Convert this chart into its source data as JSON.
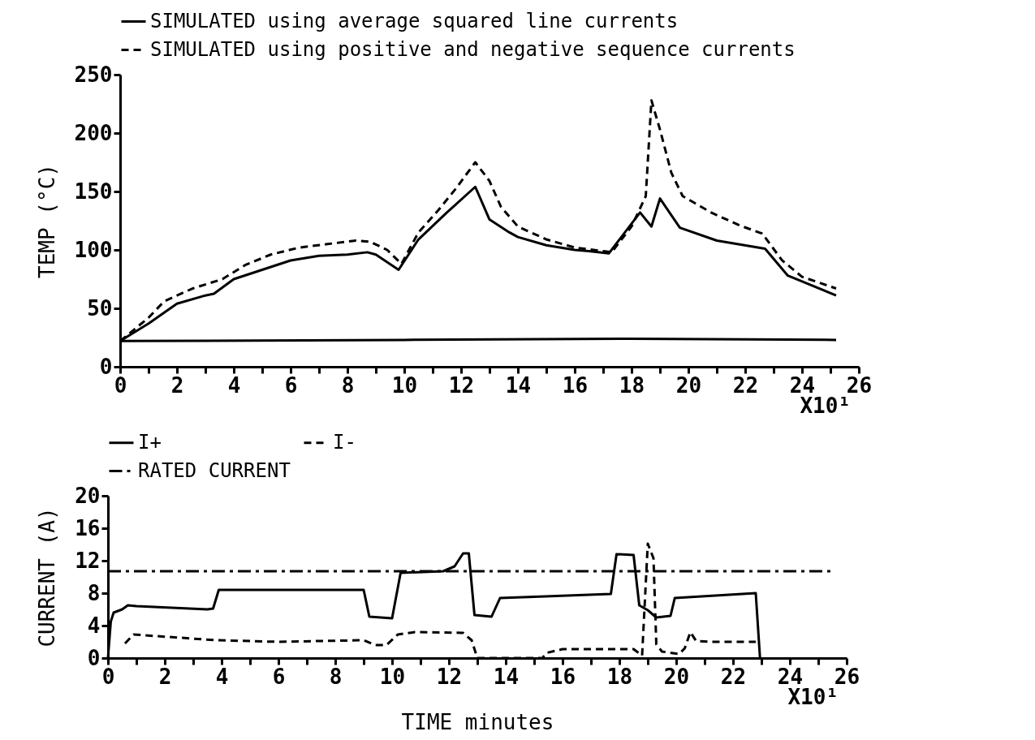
{
  "chart_data": [
    {
      "type": "line",
      "ylabel": "TEMP (°C)",
      "xlim": [
        0,
        26
      ],
      "ylim": [
        0,
        250
      ],
      "xticks": [
        0,
        {
          "value": 1,
          "label": null
        },
        2,
        {
          "value": 3,
          "label": null
        },
        4,
        {
          "value": 5,
          "label": null
        },
        6,
        {
          "value": 7,
          "label": null
        },
        8,
        {
          "value": 9,
          "label": null
        },
        10,
        {
          "value": 11,
          "label": null
        },
        12,
        {
          "value": 13,
          "label": null
        },
        14,
        {
          "value": 15,
          "label": null
        },
        16,
        {
          "value": 17,
          "label": null
        },
        18,
        {
          "value": 19,
          "label": null
        },
        20,
        {
          "value": 21,
          "label": null
        },
        22,
        {
          "value": 23,
          "label": null
        },
        24,
        {
          "value": 25,
          "label": null
        },
        26
      ],
      "yticks": [
        0,
        50,
        100,
        150,
        200,
        250
      ],
      "legend": "top",
      "annotations": [
        "X10¹"
      ],
      "series": [
        {
          "name": "SIMULATED using average squared line currents",
          "color": "#000000",
          "line_style": "solid",
          "x": [
            0,
            1,
            2,
            3,
            3.3,
            4,
            5,
            6,
            7,
            8,
            8.7,
            9,
            9.8,
            10.5,
            11.5,
            12.5,
            13,
            13.7,
            14,
            15,
            16,
            16.5,
            17.2,
            18.3,
            18.7,
            19,
            19.7,
            21,
            22.7,
            23.5,
            25.2
          ],
          "values": [
            22,
            37,
            54,
            61,
            62.5,
            75,
            83,
            91,
            95,
            96,
            98,
            96,
            83,
            109,
            132,
            154,
            126,
            115,
            111,
            104,
            100,
            99,
            97,
            132,
            120,
            144,
            119,
            108,
            101,
            78,
            61
          ]
        },
        {
          "name": "SIMULATED using positive and negative sequence currents",
          "color": "#000000",
          "line_style": "dashed",
          "x": [
            0,
            1,
            1.55,
            2.55,
            3.6,
            4.4,
            5.3,
            6.3,
            7.3,
            8.3,
            8.8,
            9.4,
            9.9,
            10.5,
            11.2,
            11.8,
            12.5,
            13,
            13.4,
            14,
            15,
            16,
            17,
            17.3,
            18,
            18.5,
            18.7,
            19,
            19.4,
            19.8,
            20.8,
            21.8,
            22.6,
            23.3,
            24,
            25.2
          ],
          "values": [
            22,
            42,
            56,
            67,
            75,
            87,
            96,
            102,
            105,
            108,
            107,
            100,
            88,
            115,
            134,
            152,
            175,
            159,
            137,
            120,
            109,
            102,
            99,
            98,
            120,
            146,
            228,
            203,
            166,
            146,
            132,
            121,
            114,
            91,
            77,
            67
          ]
        },
        {
          "color": "#000000",
          "line_style": "solid",
          "x": [
            0,
            10,
            18,
            25.2
          ],
          "values": [
            22,
            23,
            24,
            23
          ]
        }
      ]
    },
    {
      "type": "line",
      "xlabel": "TIME minutes",
      "ylabel": "CURRENT (A)",
      "xlim": [
        0,
        26
      ],
      "ylim": [
        0,
        20
      ],
      "xticks": [
        0,
        {
          "value": 1,
          "label": null
        },
        2,
        {
          "value": 3,
          "label": null
        },
        4,
        {
          "value": 5,
          "label": null
        },
        6,
        {
          "value": 7,
          "label": null
        },
        8,
        {
          "value": 9,
          "label": null
        },
        10,
        {
          "value": 11,
          "label": null
        },
        12,
        {
          "value": 13,
          "label": null
        },
        14,
        {
          "value": 15,
          "label": null
        },
        16,
        {
          "value": 17,
          "label": null
        },
        18,
        {
          "value": 19,
          "label": null
        },
        20,
        {
          "value": 21,
          "label": null
        },
        22,
        {
          "value": 23,
          "label": null
        },
        24,
        {
          "value": 25,
          "label": null
        },
        26
      ],
      "yticks": [
        0,
        4,
        8,
        12,
        16,
        20
      ],
      "legend": "top",
      "annotations": [
        "X10¹"
      ],
      "series": [
        {
          "name": "I+",
          "color": "#000000",
          "line_style": "solid",
          "x": [
            0,
            0.1,
            0.2,
            0.5,
            0.7,
            1,
            3.5,
            3.7,
            3.9,
            4.1,
            9,
            9.2,
            10,
            10.3,
            11.8,
            12.2,
            12.5,
            12.7,
            12.9,
            13.5,
            13.8,
            15.4,
            17.7,
            17.9,
            18.5,
            18.7,
            19,
            19.3,
            19.8,
            19.95,
            22.8,
            22.95
          ],
          "values": [
            0,
            4.5,
            5.6,
            6,
            6.5,
            6.4,
            6,
            6.1,
            8.4,
            8.4,
            8.4,
            5.1,
            4.9,
            10.5,
            10.7,
            11.3,
            12.9,
            12.9,
            5.3,
            5.1,
            7.4,
            7.6,
            7.9,
            12.8,
            12.7,
            6.5,
            5.9,
            5,
            5.2,
            7.4,
            8,
            0
          ]
        },
        {
          "name": "I-",
          "color": "#000000",
          "line_style": "dashed",
          "x": [
            0.6,
            0.9,
            3.8,
            6,
            9,
            9.4,
            9.8,
            10.2,
            10.8,
            12.5,
            12.8,
            13,
            15.3,
            15.4,
            16,
            18.5,
            18.8,
            19,
            19.2,
            19.3,
            19.5,
            20.1,
            20.3,
            20.5,
            20.7,
            21.2,
            22.8
          ],
          "values": [
            1.8,
            2.9,
            2.2,
            2,
            2.2,
            1.6,
            1.6,
            2.9,
            3.2,
            3.1,
            2.2,
            0,
            0,
            0.6,
            1.1,
            1.1,
            0.3,
            14.1,
            12.3,
            1.7,
            0.8,
            0.5,
            1.2,
            3.2,
            2.1,
            2,
            2
          ]
        },
        {
          "name": "RATED CURRENT",
          "color": "#000000",
          "line_style": "dashdot",
          "x": [
            0,
            25.5
          ],
          "values": [
            10.7,
            10.7
          ]
        }
      ]
    }
  ]
}
